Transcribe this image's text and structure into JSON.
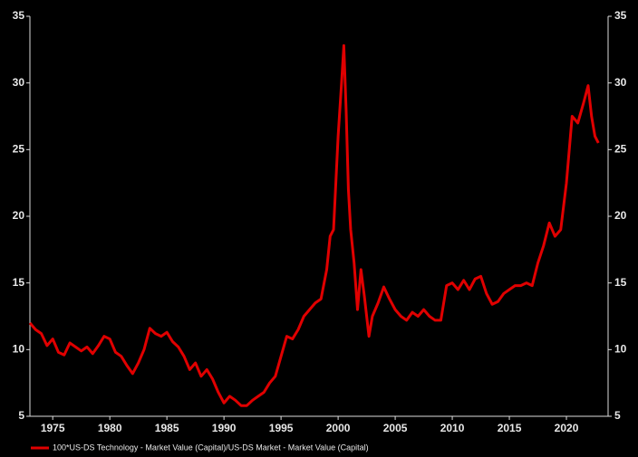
{
  "chart_data": {
    "type": "line",
    "x": [
      1973.0,
      1973.5,
      1974.0,
      1974.5,
      1975.0,
      1975.5,
      1976.0,
      1976.5,
      1977.0,
      1977.5,
      1978.0,
      1978.5,
      1979.0,
      1979.5,
      1980.0,
      1980.5,
      1981.0,
      1981.5,
      1982.0,
      1982.5,
      1983.0,
      1983.5,
      1984.0,
      1984.5,
      1985.0,
      1985.5,
      1986.0,
      1986.5,
      1987.0,
      1987.5,
      1988.0,
      1988.5,
      1989.0,
      1989.5,
      1990.0,
      1990.5,
      1991.0,
      1991.5,
      1992.0,
      1992.5,
      1993.0,
      1993.5,
      1994.0,
      1994.5,
      1995.0,
      1995.5,
      1996.0,
      1996.5,
      1997.0,
      1997.5,
      1998.0,
      1998.5,
      1999.0,
      1999.3,
      1999.6,
      2000.0,
      2000.3,
      2000.5,
      2000.7,
      2000.9,
      2001.1,
      2001.4,
      2001.7,
      2002.0,
      2002.3,
      2002.7,
      2003.0,
      2003.5,
      2004.0,
      2004.5,
      2005.0,
      2005.5,
      2006.0,
      2006.5,
      2007.0,
      2007.5,
      2008.0,
      2008.5,
      2009.0,
      2009.5,
      2010.0,
      2010.5,
      2011.0,
      2011.5,
      2012.0,
      2012.5,
      2013.0,
      2013.5,
      2014.0,
      2014.5,
      2015.0,
      2015.5,
      2016.0,
      2016.5,
      2017.0,
      2017.5,
      2018.0,
      2018.5,
      2019.0,
      2019.5,
      2020.0,
      2020.5,
      2021.0,
      2021.5,
      2021.9,
      2022.2,
      2022.5,
      2022.8
    ],
    "series": [
      {
        "name": "100*US-DS Technology - Market Value (Capital)/US-DS Market - Market Value (Capital)",
        "color": "#e00000",
        "values": [
          12.0,
          11.5,
          11.2,
          10.3,
          10.8,
          9.8,
          9.6,
          10.5,
          10.2,
          9.9,
          10.2,
          9.7,
          10.3,
          11.0,
          10.8,
          9.8,
          9.5,
          8.8,
          8.2,
          9.0,
          10.0,
          11.6,
          11.2,
          11.0,
          11.3,
          10.6,
          10.2,
          9.5,
          8.5,
          9.0,
          8.0,
          8.5,
          7.8,
          6.8,
          6.0,
          6.5,
          6.2,
          5.8,
          5.8,
          6.2,
          6.5,
          6.8,
          7.5,
          8.0,
          9.5,
          11.0,
          10.8,
          11.5,
          12.5,
          13.0,
          13.5,
          13.8,
          16.0,
          18.5,
          19.0,
          26.0,
          30.0,
          32.8,
          28.0,
          22.0,
          19.0,
          16.5,
          13.0,
          16.0,
          14.0,
          11.0,
          12.5,
          13.5,
          14.7,
          13.8,
          13.0,
          12.5,
          12.2,
          12.8,
          12.5,
          13.0,
          12.5,
          12.2,
          12.2,
          14.8,
          15.0,
          14.5,
          15.2,
          14.5,
          15.3,
          15.5,
          14.2,
          13.4,
          13.6,
          14.2,
          14.5,
          14.8,
          14.8,
          15.0,
          14.8,
          16.5,
          17.8,
          19.5,
          18.5,
          19.0,
          22.5,
          27.5,
          27.0,
          28.5,
          29.8,
          27.5,
          26.0,
          25.5
        ]
      }
    ],
    "xlim": [
      1973.0,
      2023.65
    ],
    "xticks": [
      1975,
      1980,
      1985,
      1990,
      1995,
      2000,
      2005,
      2010,
      2015,
      2020
    ],
    "ylim": [
      5,
      35
    ],
    "yticks": [
      5,
      10,
      15,
      20,
      25,
      30,
      35
    ],
    "y2lim": [
      5,
      35
    ],
    "y2ticks": [
      5,
      10,
      15,
      20,
      25,
      30,
      35
    ],
    "legend": "bottom-left"
  }
}
